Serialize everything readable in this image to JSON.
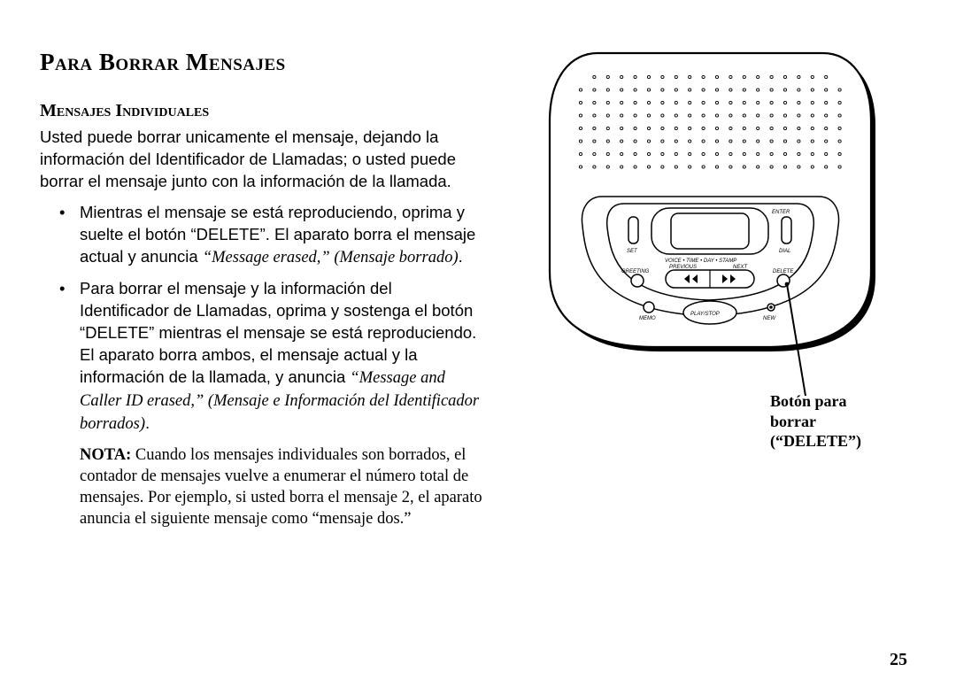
{
  "page": {
    "title": "Para Borrar Mensajes",
    "subtitle": "Mensajes Individuales",
    "intro": "Usted puede borrar unicamente el mensaje, dejando la información del Identificador de Llamadas; o usted puede borrar el mensaje junto con la información de la llamada.",
    "bullet1_a": "Mientras el mensaje se está reproduciendo, oprima y suelte el botón “DELETE”. El aparato borra el mensaje actual y anuncia ",
    "bullet1_b": "“Message erased,” (Mensaje borrado)",
    "bullet1_c": ".",
    "bullet2_a": "Para borrar el mensaje y la información del Identificador de Llamadas, oprima y sostenga el botón “DELETE” mientras el mensaje se está reproduciendo. El aparato borra ambos, el mensaje actual y la información de la llamada, y anuncia ",
    "bullet2_b": "“Message and Caller ID erased,” (Mensaje e Información del Identificador borrados)",
    "bullet2_c": ".",
    "nota_label": "NOTA:",
    "nota_body": " Cuando los mensajes individuales son borrados, el contador de mensajes vuelve a enumerar el número total de mensajes. Por ejemplo, si usted borra el mensaje 2, el aparato anuncia el siguiente mensaje como “mensaje dos.”",
    "page_number": "25"
  },
  "device": {
    "callout_line1": "Botón para borrar",
    "callout_line2": "(“DELETE”)",
    "labels": {
      "enter": "ENTER",
      "set": "SET",
      "dial": "DIAL",
      "voice_stamp": "VOICE • TIME • DAY • STAMP",
      "greeting": "GREETING",
      "delete": "DELETE",
      "previous": "PREVIOUS",
      "next": "NEXT",
      "memo": "MEMO",
      "new": "NEW",
      "playstop": "PLAY/STOP"
    },
    "style": {
      "body_fill": "#ffffff",
      "stroke": "#000000",
      "shadow": "#000000",
      "outer_stroke_w": 2.2,
      "inner_stroke_w": 1.5,
      "speaker_rows": 8,
      "speaker_cols": 20,
      "speaker_dot_r": 1.6,
      "label_font": "Arial",
      "label_style": "italic"
    }
  }
}
